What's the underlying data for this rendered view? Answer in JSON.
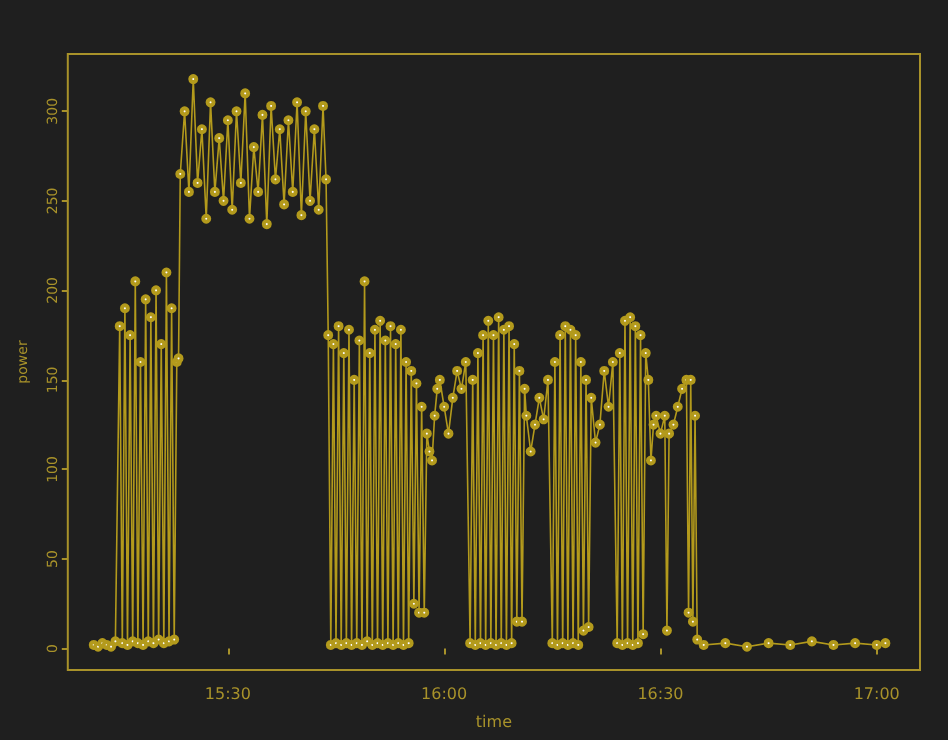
{
  "chart_data": {
    "type": "line",
    "xlabel": "time",
    "ylabel": "power",
    "marker": "circle",
    "grid": false,
    "xlim": [
      15.13,
      17.1
    ],
    "xticks": [
      {
        "value": 15.5,
        "label": "15:30"
      },
      {
        "value": 16,
        "label": "16:00"
      },
      {
        "value": 16.5,
        "label": "16:30"
      },
      {
        "value": 17,
        "label": "17:00"
      }
    ],
    "ylim": [
      -12,
      332
    ],
    "yticks": [
      0,
      50,
      100,
      150,
      200,
      250,
      300
    ],
    "series": [
      {
        "color": "#b39a1c",
        "x": [
          15.19,
          15.2,
          15.21,
          15.22,
          15.23,
          15.24,
          15.25,
          15.256,
          15.262,
          15.268,
          15.274,
          15.28,
          15.286,
          15.292,
          15.298,
          15.304,
          15.31,
          15.316,
          15.322,
          15.328,
          15.334,
          15.34,
          15.346,
          15.352,
          15.358,
          15.364,
          15.37,
          15.376,
          15.382,
          15.386,
          15.39,
          15.4,
          15.41,
          15.42,
          15.43,
          15.44,
          15.45,
          15.46,
          15.47,
          15.48,
          15.49,
          15.5,
          15.51,
          15.52,
          15.53,
          15.54,
          15.55,
          15.56,
          15.57,
          15.58,
          15.59,
          15.6,
          15.61,
          15.62,
          15.63,
          15.64,
          15.65,
          15.66,
          15.67,
          15.68,
          15.69,
          15.7,
          15.71,
          15.72,
          15.727,
          15.732,
          15.738,
          15.744,
          15.75,
          15.756,
          15.762,
          15.768,
          15.774,
          15.78,
          15.786,
          15.792,
          15.798,
          15.804,
          15.81,
          15.816,
          15.822,
          15.828,
          15.834,
          15.84,
          15.846,
          15.852,
          15.858,
          15.864,
          15.87,
          15.876,
          15.882,
          15.888,
          15.894,
          15.9,
          15.906,
          15.912,
          15.918,
          15.924,
          15.93,
          15.936,
          15.942,
          15.948,
          15.954,
          15.96,
          15.966,
          15.972,
          15.978,
          15.984,
          15.99,
          16.0,
          16.01,
          16.02,
          16.03,
          16.04,
          16.05,
          16.06,
          16.066,
          16.072,
          16.078,
          16.084,
          16.09,
          16.096,
          16.102,
          16.108,
          16.114,
          16.12,
          16.126,
          16.132,
          16.138,
          16.144,
          16.15,
          16.156,
          16.162,
          16.168,
          16.174,
          16.18,
          16.186,
          16.19,
          16.2,
          16.21,
          16.22,
          16.23,
          16.24,
          16.25,
          16.256,
          16.262,
          16.268,
          16.274,
          16.28,
          16.286,
          16.292,
          16.298,
          16.304,
          16.31,
          16.316,
          16.322,
          16.328,
          16.334,
          16.34,
          16.35,
          16.36,
          16.37,
          16.38,
          16.39,
          16.4,
          16.406,
          16.412,
          16.418,
          16.424,
          16.43,
          16.436,
          16.442,
          16.448,
          16.454,
          16.46,
          16.466,
          16.472,
          16.478,
          16.484,
          16.49,
          16.5,
          16.51,
          16.515,
          16.52,
          16.53,
          16.54,
          16.55,
          16.56,
          16.565,
          16.57,
          16.575,
          16.58,
          16.585,
          16.6,
          16.65,
          16.7,
          16.75,
          16.8,
          16.85,
          16.9,
          16.95,
          17.0,
          17.02
        ],
        "values": [
          2,
          1,
          3,
          2,
          1,
          4,
          180,
          3,
          190,
          2,
          175,
          4,
          205,
          3,
          160,
          2,
          195,
          4,
          185,
          3,
          200,
          5,
          170,
          3,
          210,
          4,
          190,
          5,
          160,
          162,
          265,
          300,
          255,
          318,
          260,
          290,
          240,
          305,
          255,
          285,
          250,
          295,
          245,
          300,
          260,
          310,
          240,
          280,
          255,
          298,
          237,
          303,
          262,
          290,
          248,
          295,
          255,
          305,
          242,
          300,
          250,
          290,
          245,
          303,
          262,
          175,
          2,
          170,
          3,
          180,
          2,
          165,
          3,
          178,
          2,
          150,
          3,
          172,
          2,
          205,
          4,
          165,
          2,
          178,
          3,
          183,
          2,
          172,
          3,
          180,
          2,
          170,
          3,
          178,
          2,
          160,
          3,
          155,
          25,
          148,
          20,
          135,
          20,
          120,
          110,
          105,
          130,
          145,
          150,
          135,
          120,
          140,
          155,
          145,
          160,
          3,
          150,
          2,
          165,
          3,
          175,
          2,
          183,
          3,
          175,
          2,
          185,
          3,
          178,
          2,
          180,
          3,
          170,
          15,
          155,
          15,
          145,
          130,
          110,
          125,
          140,
          128,
          150,
          3,
          160,
          2,
          175,
          3,
          180,
          2,
          178,
          3,
          175,
          2,
          160,
          10,
          150,
          12,
          140,
          115,
          125,
          155,
          135,
          160,
          3,
          165,
          2,
          183,
          3,
          185,
          2,
          180,
          3,
          175,
          8,
          165,
          150,
          105,
          125,
          130,
          120,
          130,
          10,
          120,
          125,
          135,
          145,
          150,
          20,
          150,
          15,
          130,
          5,
          2,
          3,
          1,
          3,
          2,
          4,
          2,
          3,
          2,
          3
        ]
      }
    ]
  }
}
